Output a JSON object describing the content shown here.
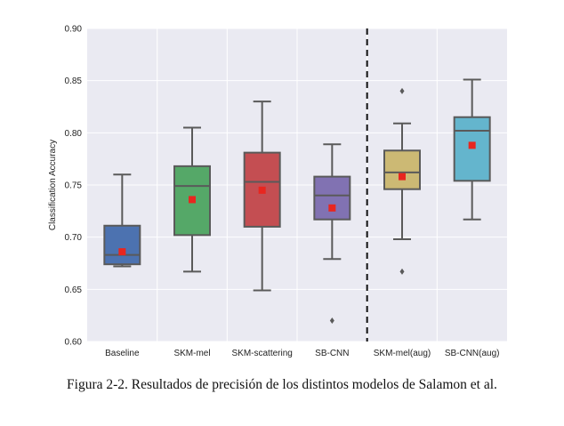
{
  "chart_data": {
    "type": "box",
    "ylabel": "Classification Accuracy",
    "ylim": [
      0.6,
      0.9
    ],
    "yticks": [
      "0.60",
      "0.65",
      "0.70",
      "0.75",
      "0.80",
      "0.85",
      "0.90"
    ],
    "yticks_values": [
      0.6,
      0.65,
      0.7,
      0.75,
      0.8,
      0.85,
      0.9
    ],
    "grid": true,
    "divider_after_index": 3,
    "mean_color": "#e8261f",
    "series": [
      {
        "name": "Baseline",
        "color": "#4c72b0",
        "whisker_low": 0.672,
        "q1": 0.674,
        "median": 0.683,
        "q3": 0.711,
        "whisker_high": 0.76,
        "mean": 0.686,
        "outliers": []
      },
      {
        "name": "SKM-mel",
        "color": "#55a868",
        "whisker_low": 0.667,
        "q1": 0.702,
        "median": 0.749,
        "q3": 0.768,
        "whisker_high": 0.805,
        "mean": 0.736,
        "outliers": []
      },
      {
        "name": "SKM-scattering",
        "color": "#c44e52",
        "whisker_low": 0.649,
        "q1": 0.71,
        "median": 0.753,
        "q3": 0.781,
        "whisker_high": 0.83,
        "mean": 0.745,
        "outliers": []
      },
      {
        "name": "SB-CNN",
        "color": "#8172b2",
        "whisker_low": 0.679,
        "q1": 0.717,
        "median": 0.74,
        "q3": 0.758,
        "whisker_high": 0.789,
        "mean": 0.728,
        "outliers": [
          0.62
        ]
      },
      {
        "name": "SKM-mel(aug)",
        "color": "#ccb974",
        "whisker_low": 0.698,
        "q1": 0.746,
        "median": 0.762,
        "q3": 0.783,
        "whisker_high": 0.809,
        "mean": 0.758,
        "outliers": [
          0.84,
          0.667
        ]
      },
      {
        "name": "SB-CNN(aug)",
        "color": "#64b5cd",
        "whisker_low": 0.717,
        "q1": 0.754,
        "median": 0.802,
        "q3": 0.815,
        "whisker_high": 0.851,
        "mean": 0.788,
        "outliers": []
      }
    ]
  },
  "caption": "Figura 2-2. Resultados de precisión de los distintos modelos de Salamon et al."
}
